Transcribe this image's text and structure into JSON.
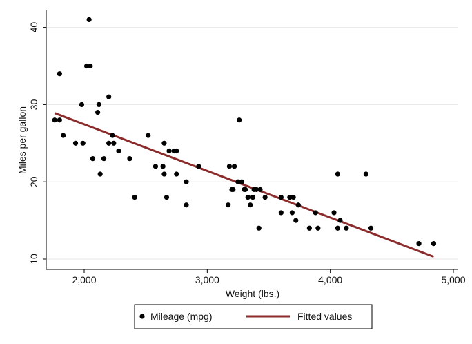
{
  "chart_data": {
    "type": "scatter",
    "title": "",
    "xlabel": "Weight (lbs.)",
    "ylabel": "Miles per gallon",
    "xlim": [
      1760,
      4840
    ],
    "ylim": [
      12,
      41
    ],
    "xticks": [
      2000,
      3000,
      4000,
      5000
    ],
    "xtick_labels": [
      "2,000",
      "3,000",
      "4,000",
      "5,000"
    ],
    "yticks": [
      10,
      20,
      30,
      40
    ],
    "ytick_labels": [
      "10",
      "20",
      "30",
      "40"
    ],
    "grid": "horizontal",
    "legend_position": "bottom",
    "colors": {
      "points": "#000000",
      "fit": "#8b2b2b",
      "grid": "#e6e6e6"
    },
    "series": [
      {
        "name": "Mileage (mpg)",
        "kind": "scatter",
        "points": [
          [
            1760,
            28
          ],
          [
            1800,
            34
          ],
          [
            1800,
            28
          ],
          [
            1830,
            26
          ],
          [
            1930,
            25
          ],
          [
            1980,
            30
          ],
          [
            1990,
            25
          ],
          [
            2020,
            35
          ],
          [
            2040,
            41
          ],
          [
            2050,
            35
          ],
          [
            2070,
            23
          ],
          [
            2110,
            29
          ],
          [
            2120,
            30
          ],
          [
            2130,
            21
          ],
          [
            2160,
            23
          ],
          [
            2200,
            25
          ],
          [
            2200,
            31
          ],
          [
            2230,
            26
          ],
          [
            2240,
            25
          ],
          [
            2280,
            24
          ],
          [
            2370,
            23
          ],
          [
            2410,
            18
          ],
          [
            2520,
            26
          ],
          [
            2580,
            22
          ],
          [
            2640,
            22
          ],
          [
            2650,
            25
          ],
          [
            2650,
            21
          ],
          [
            2670,
            18
          ],
          [
            2690,
            24
          ],
          [
            2730,
            24
          ],
          [
            2750,
            24
          ],
          [
            2750,
            21
          ],
          [
            2830,
            20
          ],
          [
            2830,
            17
          ],
          [
            2930,
            22
          ],
          [
            3170,
            17
          ],
          [
            3180,
            22
          ],
          [
            3200,
            19
          ],
          [
            3210,
            19
          ],
          [
            3220,
            22
          ],
          [
            3250,
            20
          ],
          [
            3260,
            28
          ],
          [
            3280,
            20
          ],
          [
            3300,
            19
          ],
          [
            3310,
            19
          ],
          [
            3330,
            18
          ],
          [
            3350,
            17
          ],
          [
            3370,
            18
          ],
          [
            3380,
            19
          ],
          [
            3400,
            19
          ],
          [
            3420,
            14
          ],
          [
            3430,
            19
          ],
          [
            3470,
            18
          ],
          [
            3600,
            18
          ],
          [
            3600,
            16
          ],
          [
            3670,
            18
          ],
          [
            3690,
            16
          ],
          [
            3700,
            18
          ],
          [
            3720,
            15
          ],
          [
            3740,
            17
          ],
          [
            3830,
            14
          ],
          [
            3880,
            16
          ],
          [
            3900,
            14
          ],
          [
            4030,
            16
          ],
          [
            4060,
            21
          ],
          [
            4060,
            14
          ],
          [
            4080,
            15
          ],
          [
            4130,
            14
          ],
          [
            4290,
            21
          ],
          [
            4330,
            14
          ],
          [
            4720,
            12
          ],
          [
            4840,
            12
          ]
        ]
      },
      {
        "name": "Fitted values",
        "kind": "line",
        "points": [
          [
            1760,
            28.9
          ],
          [
            4840,
            10.3
          ]
        ]
      }
    ]
  }
}
